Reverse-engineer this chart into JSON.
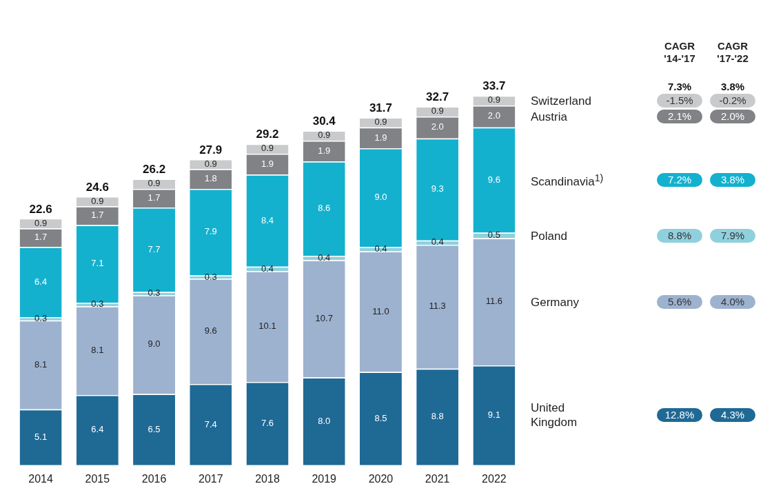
{
  "chart_data": {
    "type": "bar",
    "stacked": true,
    "legend": false,
    "grid": false,
    "tick_labels": "x",
    "categories": [
      "2014",
      "2015",
      "2016",
      "2017",
      "2018",
      "2019",
      "2020",
      "2021",
      "2022"
    ],
    "series": [
      {
        "name": "United Kingdom",
        "color": "#1f6995",
        "values": [
          5.1,
          6.4,
          6.5,
          7.4,
          7.6,
          8.0,
          8.5,
          8.8,
          9.1
        ],
        "value_labels": [
          "5.1",
          "6.4",
          "6.5",
          "7.4",
          "7.6",
          "8.0",
          "8.5",
          "8.8",
          "9.1"
        ]
      },
      {
        "name": "Germany",
        "color": "#9db2cf",
        "values": [
          8.1,
          8.1,
          9.0,
          9.6,
          10.1,
          10.7,
          11.0,
          11.3,
          11.6
        ],
        "value_labels": [
          "8.1",
          "8.1",
          "9.0",
          "9.6",
          "10.1",
          "10.7",
          "11.0",
          "11.3",
          "11.6"
        ]
      },
      {
        "name": "Poland",
        "color": "#8fd0de",
        "values": [
          0.3,
          0.3,
          0.3,
          0.3,
          0.4,
          0.4,
          0.4,
          0.4,
          0.5
        ],
        "value_labels": [
          "0.3",
          "0.3",
          "0.3",
          "0.3",
          "0.4",
          "0.4",
          "0.4",
          "0.4",
          "0.5"
        ]
      },
      {
        "name": "Scandinavia$^{1)}$",
        "color": "#14b1cf",
        "values": [
          6.4,
          7.1,
          7.7,
          7.9,
          8.4,
          8.6,
          9.0,
          9.3,
          9.6
        ],
        "value_labels": [
          "6.4",
          "7.1",
          "7.7",
          "7.9",
          "8.4",
          "8.6",
          "9.0",
          "9.3",
          "9.6"
        ]
      },
      {
        "name": "Austria",
        "color": "#808285",
        "values": [
          1.7,
          1.7,
          1.7,
          1.8,
          1.9,
          1.9,
          1.9,
          2.0,
          2.0
        ],
        "value_labels": [
          "1.7",
          "1.7",
          "1.7",
          "1.8",
          "1.9",
          "1.9",
          "1.9",
          "2.0",
          "2.0"
        ]
      },
      {
        "name": "Switzerland",
        "color": "#c9cacc",
        "values": [
          0.9,
          0.9,
          0.9,
          0.9,
          0.9,
          0.9,
          0.9,
          0.9,
          0.9
        ],
        "value_labels": [
          "0.9",
          "0.9",
          "0.9",
          "0.9",
          "0.9",
          "0.9",
          "0.9",
          "0.9",
          "0.9"
        ]
      }
    ],
    "totals": [
      "22.6",
      "24.6",
      "26.2",
      "27.9",
      "29.2",
      "30.4",
      "31.7",
      "32.7",
      "33.7"
    ],
    "annotations": [
      "CAGR '14-'17",
      "CAGR '17-'22",
      "7.3%",
      "3.8%",
      "-1.5%",
      "-0.2%",
      "2.1%",
      "2.0%",
      "7.2%",
      "3.8%",
      "8.8%",
      "7.9%",
      "5.6%",
      "4.0%",
      "12.8%",
      "4.3%"
    ]
  }
}
